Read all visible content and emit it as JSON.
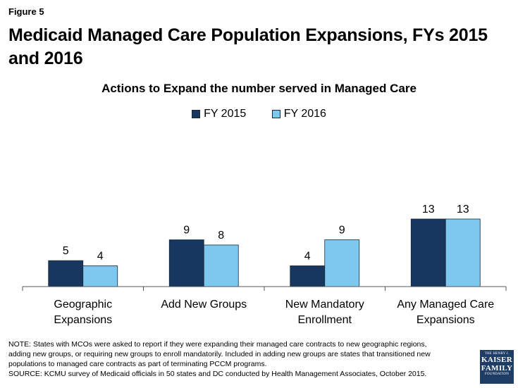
{
  "figure_label": "Figure 5",
  "title": "Medicaid Managed Care Population Expansions, FYs 2015 and 2016",
  "colors": {
    "fy2015": "#17375e",
    "fy2016": "#7ec8f0",
    "axis": "#595959",
    "logo_bg": "#1e3d66"
  },
  "chart_data": {
    "type": "bar",
    "title": "Actions to Expand the number served in Managed Care",
    "categories": [
      [
        "Geographic",
        "Expansions"
      ],
      [
        "Add New Groups"
      ],
      [
        "New Mandatory",
        "Enrollment"
      ],
      [
        "Any Managed Care",
        "Expansions"
      ]
    ],
    "series": [
      {
        "name": "FY 2015",
        "values": [
          5,
          9,
          4,
          13
        ]
      },
      {
        "name": "FY 2016",
        "values": [
          4,
          8,
          9,
          13
        ]
      }
    ],
    "xlabel": "",
    "ylabel": "",
    "ylim": [
      0,
      13
    ],
    "legend_position": "top-center",
    "grid": false
  },
  "note_lines": [
    "NOTE: States with MCOs were asked to report if they were expanding their managed care contracts to new geographic regions,",
    "adding new groups, or requiring new groups to enroll mandatorily. Included in adding new groups are states that transitioned new",
    "populations to managed care contracts as part of terminating PCCM programs.",
    "SOURCE: KCMU survey of Medicaid officials in 50 states and DC conducted by Health Management Associates, October 2015."
  ],
  "logo": {
    "line1": "THE HENRY J.",
    "line2": "KAISER",
    "line3": "FAMILY",
    "line4": "FOUNDATION"
  }
}
